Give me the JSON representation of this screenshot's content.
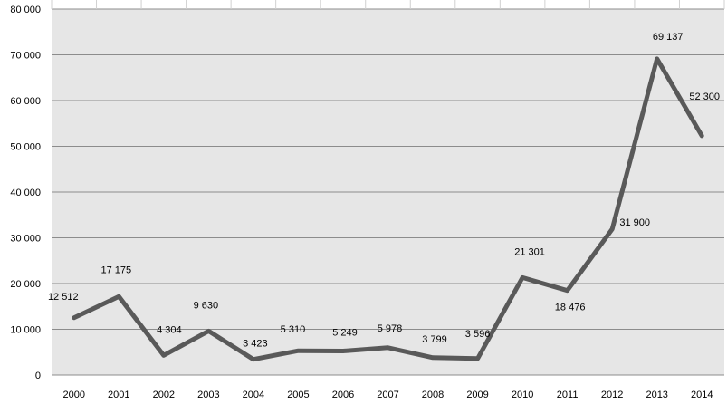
{
  "chart_data": {
    "type": "line",
    "title": "",
    "xlabel": "",
    "ylabel": "",
    "categories": [
      "2000",
      "2001",
      "2002",
      "2003",
      "2004",
      "2005",
      "2006",
      "2007",
      "2008",
      "2009",
      "2010",
      "2011",
      "2012",
      "2013",
      "2014"
    ],
    "series": [
      {
        "values": [
          12512,
          17175,
          4304,
          9630,
          3423,
          5310,
          5249,
          5978,
          3799,
          3596,
          21301,
          18476,
          31900,
          69137,
          52300
        ],
        "labels": [
          "12 512",
          "17 175",
          "4 304",
          "9 630",
          "3 423",
          "5 310",
          "5 249",
          "5 978",
          "3 799",
          "3 596",
          "21 301",
          "18 476",
          "31 900",
          "69 137",
          "52 300"
        ]
      }
    ],
    "ylim": [
      0,
      80000
    ],
    "yticks": [
      0,
      10000,
      20000,
      30000,
      40000,
      50000,
      60000,
      70000,
      80000
    ],
    "ytick_labels": [
      "0",
      "10 000",
      "20 000",
      "30 000",
      "40 000",
      "50 000",
      "60 000",
      "70 000",
      "80 000"
    ],
    "grid": true,
    "legend": "none",
    "colors": {
      "line": "#595959",
      "plot_bg": "#e6e6e6",
      "grid": "#8c8c8c"
    }
  }
}
